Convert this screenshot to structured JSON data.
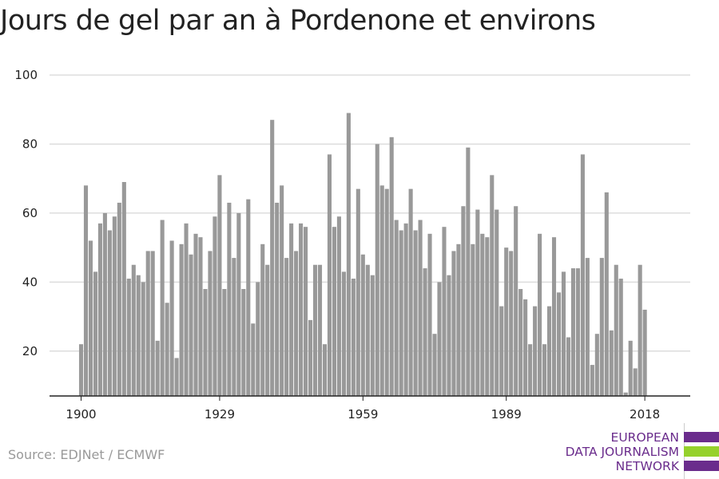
{
  "title": "Jours de gel par an à Pordenone et environs",
  "source": "Source: EDJNet / ECMWF",
  "logo": {
    "line1": "EUROPEAN",
    "line2": "DATA JOURNALISM",
    "line3": "NETWORK",
    "colors": [
      "#6a2c8c",
      "#95d12c",
      "#6a2c8c"
    ]
  },
  "colors": {
    "bar": "#999999",
    "grid": "#dddddd",
    "axis": "#222222"
  },
  "chart_data": {
    "type": "bar",
    "title": "Jours de gel par an à Pordenone et environs",
    "xlabel": "",
    "ylabel": "",
    "ylim": [
      7,
      100
    ],
    "yticks": [
      20,
      40,
      60,
      80,
      100
    ],
    "xticks": [
      1900,
      1929,
      1959,
      1989,
      2018
    ],
    "grid": true,
    "x": [
      1900,
      1901,
      1902,
      1903,
      1904,
      1905,
      1906,
      1907,
      1908,
      1909,
      1910,
      1911,
      1912,
      1913,
      1914,
      1915,
      1916,
      1917,
      1918,
      1919,
      1920,
      1921,
      1922,
      1923,
      1924,
      1925,
      1926,
      1927,
      1928,
      1929,
      1930,
      1931,
      1932,
      1933,
      1934,
      1935,
      1936,
      1937,
      1938,
      1939,
      1940,
      1941,
      1942,
      1943,
      1944,
      1945,
      1946,
      1947,
      1948,
      1949,
      1950,
      1951,
      1952,
      1953,
      1954,
      1955,
      1956,
      1957,
      1958,
      1959,
      1960,
      1961,
      1962,
      1963,
      1964,
      1965,
      1966,
      1967,
      1968,
      1969,
      1970,
      1971,
      1972,
      1973,
      1974,
      1975,
      1976,
      1977,
      1978,
      1979,
      1980,
      1981,
      1982,
      1983,
      1984,
      1985,
      1986,
      1987,
      1988,
      1989,
      1990,
      1991,
      1992,
      1993,
      1994,
      1995,
      1996,
      1997,
      1998,
      1999,
      2000,
      2001,
      2002,
      2003,
      2004,
      2005,
      2006,
      2007,
      2008,
      2009,
      2010,
      2011,
      2012,
      2013,
      2014,
      2015,
      2016,
      2017,
      2018
    ],
    "values": [
      22,
      68,
      52,
      43,
      57,
      60,
      55,
      59,
      63,
      69,
      41,
      45,
      42,
      40,
      49,
      49,
      23,
      58,
      34,
      52,
      18,
      51,
      57,
      48,
      54,
      53,
      38,
      49,
      59,
      71,
      38,
      63,
      47,
      60,
      38,
      64,
      28,
      40,
      51,
      45,
      87,
      63,
      68,
      47,
      57,
      49,
      57,
      56,
      29,
      45,
      45,
      22,
      77,
      56,
      59,
      43,
      89,
      41,
      67,
      48,
      45,
      42,
      80,
      68,
      67,
      82,
      58,
      55,
      57,
      67,
      55,
      58,
      44,
      54,
      25,
      40,
      56,
      42,
      49,
      51,
      62,
      79,
      51,
      61,
      54,
      53,
      71,
      61,
      33,
      50,
      49,
      62,
      38,
      35,
      22,
      33,
      54,
      22,
      33,
      53,
      37,
      43,
      24,
      44,
      44,
      77,
      47,
      16,
      25,
      47,
      66,
      26,
      45,
      41,
      8,
      23,
      15,
      45,
      32
    ]
  }
}
